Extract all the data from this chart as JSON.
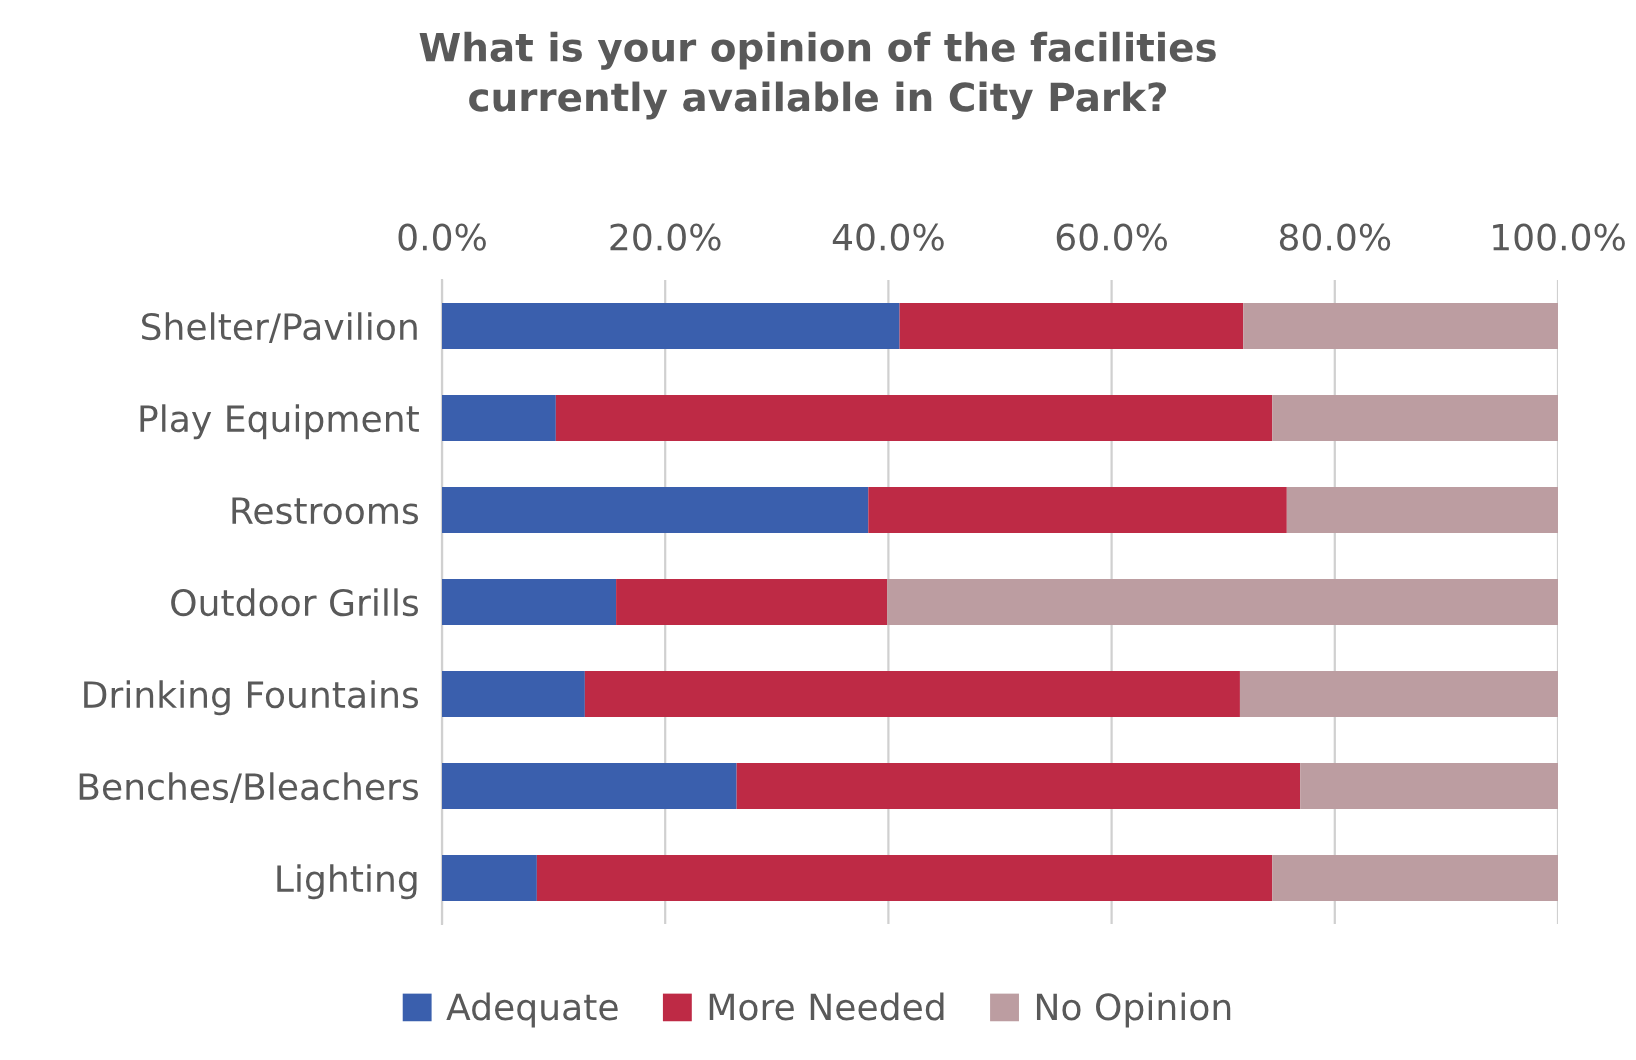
{
  "chart_data": {
    "type": "bar",
    "orientation": "horizontal",
    "stacked": true,
    "title": "What is your opinion of the facilities\ncurrently available in City Park?",
    "categories": [
      "Shelter/Pavilion",
      "Play Equipment",
      "Restrooms",
      "Outdoor Grills",
      "Drinking Fountains",
      "Benches/Bleachers",
      "Lighting"
    ],
    "series": [
      {
        "name": "Adequate",
        "color": "#3a5fad",
        "values": [
          41.0,
          10.2,
          38.2,
          15.6,
          12.8,
          26.4,
          8.5
        ]
      },
      {
        "name": "More Needed",
        "color": "#be2a45",
        "values": [
          30.8,
          64.2,
          37.5,
          24.3,
          58.7,
          50.5,
          65.9
        ]
      },
      {
        "name": "No Opinion",
        "color": "#bc9da1",
        "values": [
          28.2,
          25.6,
          24.3,
          60.1,
          28.5,
          23.1,
          25.6
        ]
      }
    ],
    "xlim": [
      0,
      100
    ],
    "xticks": [
      {
        "value": 0,
        "label": "0.0%"
      },
      {
        "value": 20,
        "label": "20.0%"
      },
      {
        "value": 40,
        "label": "40.0%"
      },
      {
        "value": 60,
        "label": "60.0%"
      },
      {
        "value": 80,
        "label": "80.0%"
      },
      {
        "value": 100,
        "label": "100.0%"
      }
    ],
    "grid": "x",
    "legend": "bottom"
  }
}
